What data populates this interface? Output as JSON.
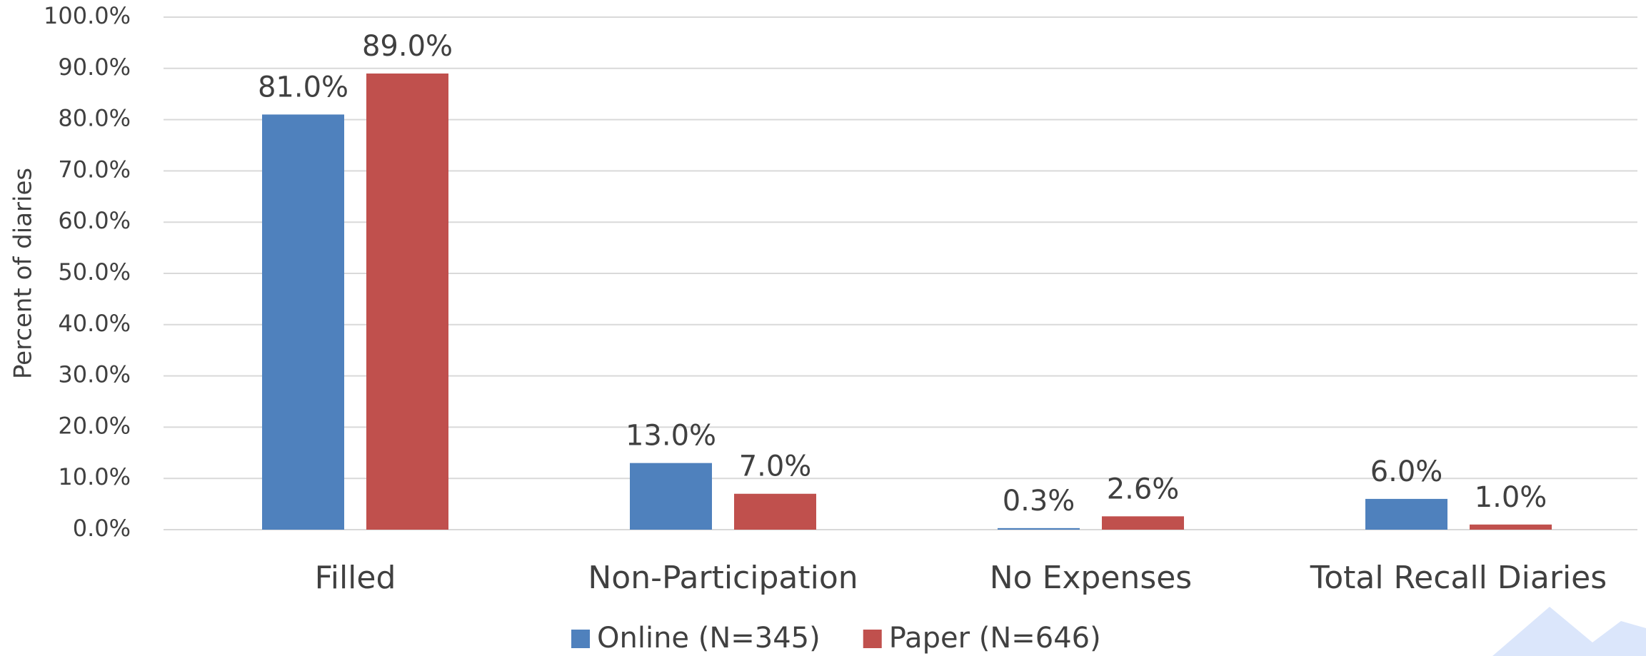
{
  "chart_data": {
    "type": "bar",
    "categories": [
      "Filled",
      "Non-Participation",
      "No Expenses",
      "Total Recall Diaries"
    ],
    "series": [
      {
        "name": "Online (N=345)",
        "color": "#4f81bd",
        "values": [
          81.0,
          13.0,
          0.3,
          6.0
        ],
        "value_labels": [
          "81.0%",
          "13.0%",
          "0.3%",
          "6.0%"
        ]
      },
      {
        "name": "Paper (N=646)",
        "color": "#c0504d",
        "values": [
          89.0,
          7.0,
          2.6,
          1.0
        ],
        "value_labels": [
          "89.0%",
          "7.0%",
          "2.6%",
          "1.0%"
        ]
      }
    ],
    "y_label": "Percent of diaries",
    "ylim": [
      0,
      100
    ],
    "yticks": [
      {
        "value": 0,
        "label": "0.0%"
      },
      {
        "value": 10,
        "label": "10.0%"
      },
      {
        "value": 20,
        "label": "20.0%"
      },
      {
        "value": 30,
        "label": "30.0%"
      },
      {
        "value": 40,
        "label": "40.0%"
      },
      {
        "value": 50,
        "label": "50.0%"
      },
      {
        "value": 60,
        "label": "60.0%"
      },
      {
        "value": 70,
        "label": "70.0%"
      },
      {
        "value": 80,
        "label": "80.0%"
      },
      {
        "value": 90,
        "label": "90.0%"
      },
      {
        "value": 100,
        "label": "100.0%"
      }
    ],
    "grid": true,
    "legend": "bottom"
  }
}
